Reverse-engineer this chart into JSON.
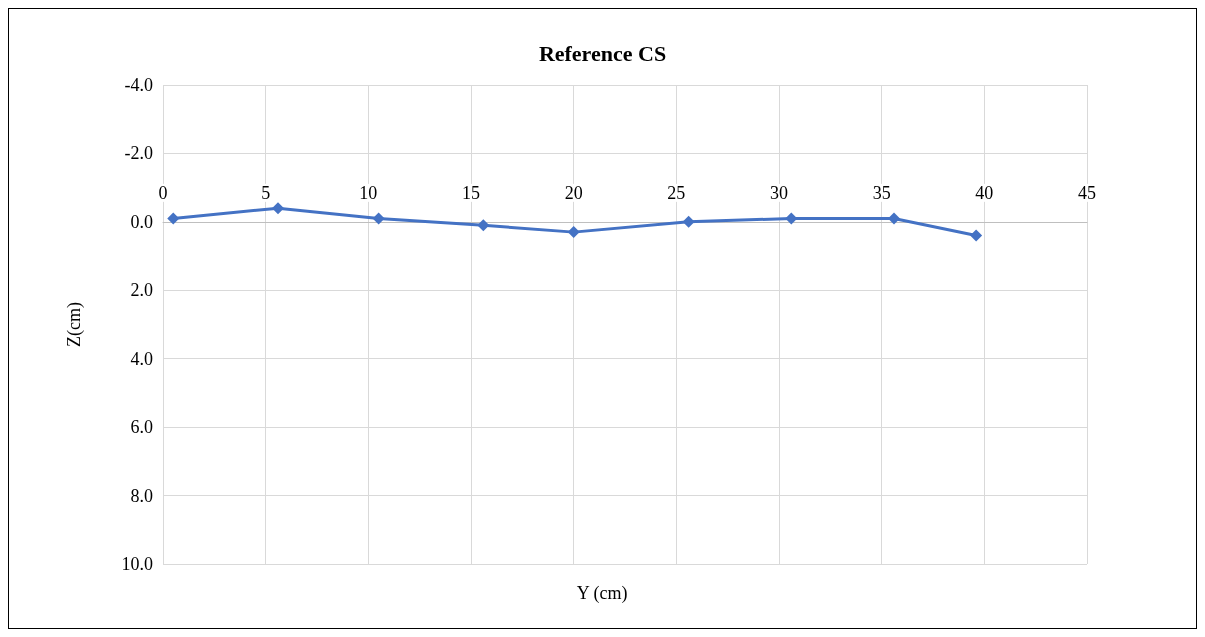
{
  "chart_data": {
    "type": "line",
    "title": "Reference CS",
    "xlabel": "Y (cm)",
    "ylabel": "Z(cm)",
    "x": [
      0.5,
      5.6,
      10.5,
      15.6,
      20,
      25.6,
      30.6,
      35.6,
      39.6
    ],
    "series": [
      {
        "color": "#4472c4",
        "values": [
          -0.1,
          -0.4,
          -0.1,
          0.1,
          0.3,
          0,
          -0.1,
          -0.1,
          0.4
        ]
      }
    ],
    "xlim": [
      0,
      45
    ],
    "xticks": [
      0,
      5,
      10,
      15,
      20,
      25,
      30,
      35,
      40,
      45
    ],
    "ylim": [
      10,
      -4
    ],
    "yticks": [
      {
        "value": -4,
        "label": "-4.0"
      },
      {
        "value": -2,
        "label": "-2.0"
      },
      {
        "value": 0,
        "label": "0.0"
      },
      {
        "value": 2,
        "label": "2.0"
      },
      {
        "value": 4,
        "label": "4.0"
      },
      {
        "value": 6,
        "label": "6.0"
      },
      {
        "value": 8,
        "label": "8.0"
      },
      {
        "value": 10,
        "label": "10.0"
      }
    ],
    "grid": true,
    "marker": "diamond",
    "line_style": "solid"
  }
}
